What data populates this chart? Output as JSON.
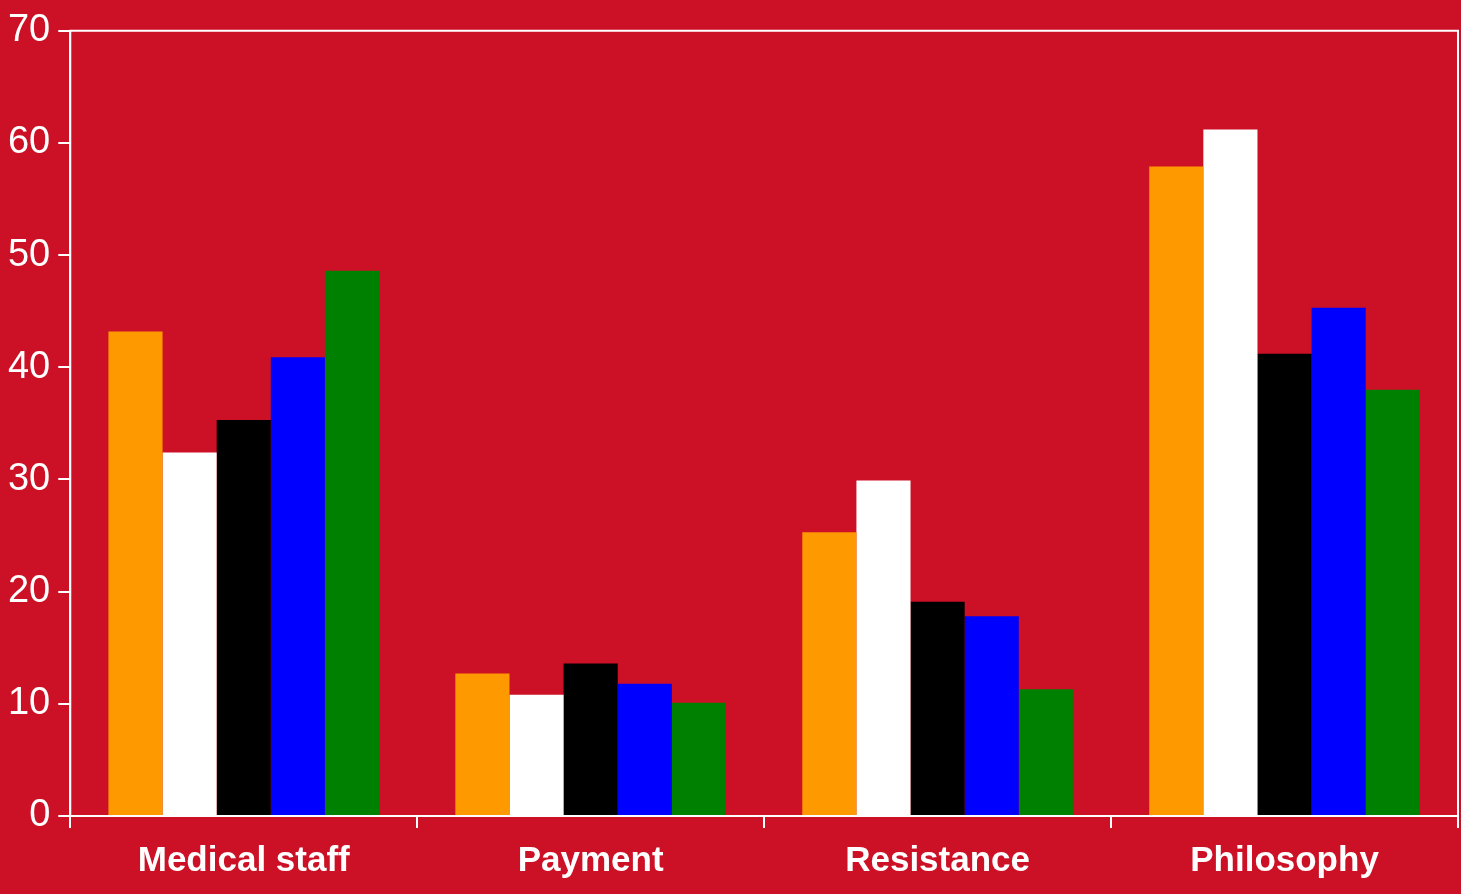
{
  "chart_data": {
    "type": "bar",
    "categories": [
      "Medical staff",
      "Payment",
      "Resistance",
      "Philosophy"
    ],
    "series": [
      {
        "color": "#ff9900",
        "values": [
          43.2,
          12.7,
          25.3,
          57.9
        ]
      },
      {
        "color": "#ffffff",
        "values": [
          32.4,
          10.8,
          29.9,
          61.2
        ]
      },
      {
        "color": "#000000",
        "values": [
          35.3,
          13.6,
          19.1,
          41.2
        ]
      },
      {
        "color": "#0000ff",
        "values": [
          40.9,
          11.8,
          17.8,
          45.3
        ]
      },
      {
        "color": "#008000",
        "values": [
          48.6,
          10.1,
          11.3,
          38.0
        ]
      }
    ],
    "ylim": [
      0,
      70
    ],
    "yticks": [
      0,
      10,
      20,
      30,
      40,
      50,
      60,
      70
    ],
    "grid": false,
    "legend": false
  }
}
